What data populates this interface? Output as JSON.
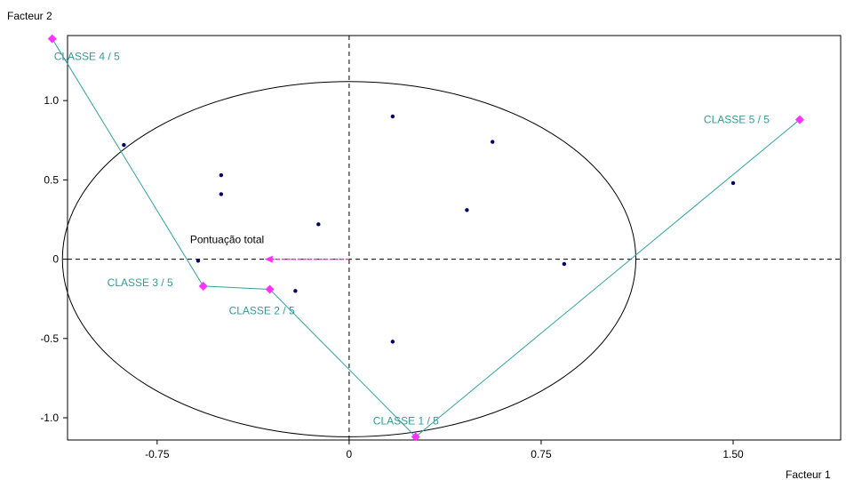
{
  "chart_data": {
    "type": "scatter",
    "xlabel": "Facteur 1",
    "ylabel": "Facteur 2",
    "xlim": [
      -1.1,
      1.92
    ],
    "ylim": [
      -1.14,
      1.41
    ],
    "x_ticks": [
      -0.75,
      0,
      0.75,
      1.5
    ],
    "x_tick_labels": [
      "-0.75",
      "0",
      "0.75",
      "1.50"
    ],
    "y_ticks": [
      1.0,
      0.5,
      0,
      -0.5,
      -1.0
    ],
    "y_tick_labels": [
      "1.0",
      "0.5",
      "0",
      "-0.5",
      "-1.0"
    ],
    "grid": false,
    "reference_lines": [
      {
        "axis": "x",
        "value": 0
      },
      {
        "axis": "y",
        "value": 0
      }
    ],
    "circle": {
      "center": [
        0,
        0
      ],
      "rx": 1.12,
      "ry": 1.12
    },
    "series": [
      {
        "points": [
          {
            "x": -0.88,
            "y": 0.72
          },
          {
            "x": -0.5,
            "y": 0.53
          },
          {
            "x": -0.5,
            "y": 0.41
          },
          {
            "x": -0.12,
            "y": 0.22
          },
          {
            "x": -0.59,
            "y": -0.01
          },
          {
            "x": -0.21,
            "y": -0.2
          },
          {
            "x": 0.17,
            "y": 0.9
          },
          {
            "x": 0.56,
            "y": 0.74
          },
          {
            "x": 0.46,
            "y": 0.31
          },
          {
            "x": 0.84,
            "y": -0.03
          },
          {
            "x": 1.5,
            "y": 0.48
          },
          {
            "x": 0.17,
            "y": -0.52
          }
        ]
      },
      {
        "points": [
          {
            "label": "CLASSE 1 / 5",
            "x": 0.26,
            "y": -1.12
          },
          {
            "label": "CLASSE 2 / 5",
            "x": -0.31,
            "y": -0.19
          },
          {
            "label": "CLASSE 3 / 5",
            "x": -0.57,
            "y": -0.17
          },
          {
            "label": "CLASSE 4 / 5",
            "x": -1.16,
            "y": 1.39
          },
          {
            "label": "CLASSE 5 / 5",
            "x": 1.76,
            "y": 0.88
          }
        ],
        "path_order": [
          "CLASSE 4 / 5",
          "CLASSE 3 / 5",
          "CLASSE 2 / 5",
          "CLASSE 1 / 5",
          "CLASSE 5 / 5"
        ]
      }
    ],
    "arrow": {
      "label": "Pontuação total",
      "from": [
        0,
        0
      ],
      "to": [
        -0.33,
        0
      ]
    },
    "colors": {
      "points": "#000066",
      "classes": "#ff33ff",
      "class_line": "#33a0a0",
      "class_label": "#339999",
      "arrow": "#ff33ff"
    }
  }
}
